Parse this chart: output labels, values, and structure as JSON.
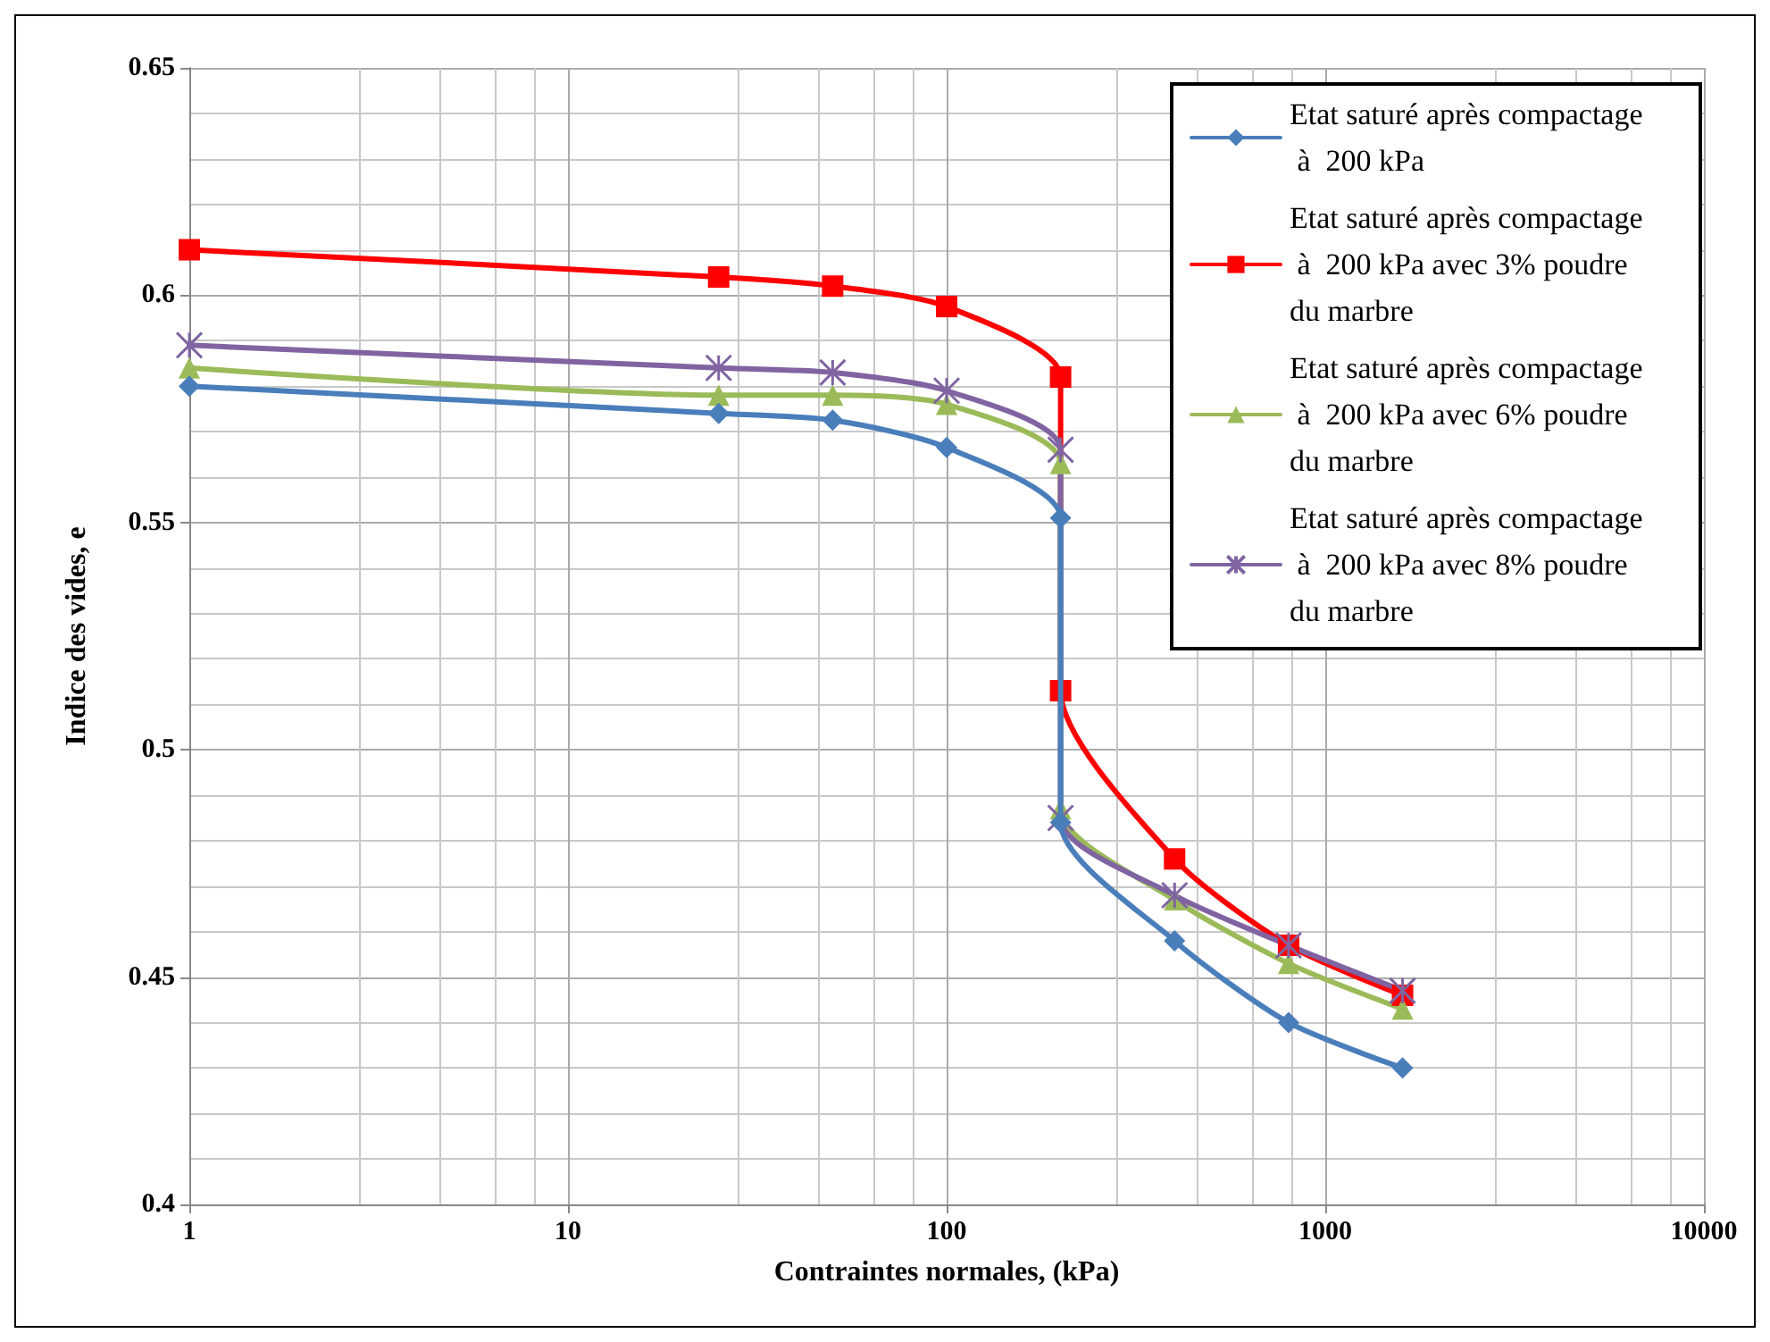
{
  "chart_data": {
    "type": "line",
    "xlabel": "Contraintes normales, (kPa)",
    "ylabel": "Indice des vides, e",
    "x": [
      1,
      25,
      50,
      100,
      200,
      200,
      400,
      800,
      1600
    ],
    "series": [
      {
        "name": "Etat saturé après compactage à  200 kPa",
        "color": "#4a7ebb",
        "marker": "diamond",
        "values": [
          0.58,
          0.574,
          0.5725,
          0.5665,
          0.551,
          0.484,
          0.458,
          0.44,
          0.43
        ]
      },
      {
        "name": "Etat saturé après compactage à  200 kPa avec 3% poudre du marbre",
        "color": "#ff0000",
        "marker": "square",
        "values": [
          0.61,
          0.604,
          0.602,
          0.5975,
          0.582,
          0.513,
          0.476,
          0.457,
          0.446
        ]
      },
      {
        "name": "Etat saturé après compactage à  200 kPa avec 6% poudre du marbre",
        "color": "#9bbb59",
        "marker": "triangle",
        "values": [
          0.584,
          0.578,
          0.578,
          0.576,
          0.563,
          0.487,
          0.467,
          0.453,
          0.443
        ]
      },
      {
        "name": "Etat saturé après compactage à  200 kPa avec 8% poudre du marbre",
        "color": "#8064a2",
        "marker": "cross",
        "values": [
          0.589,
          0.584,
          0.583,
          0.579,
          0.566,
          0.485,
          0.468,
          0.457,
          0.447
        ]
      }
    ],
    "log": "x",
    "xlim": [
      1,
      10000
    ],
    "xticks": [
      1,
      10,
      100,
      1000,
      10000
    ],
    "ylim": [
      0.4,
      0.65
    ],
    "yticks": [
      0.4,
      0.45,
      0.5,
      0.55,
      0.6,
      0.65
    ],
    "grid": true,
    "legend": "top right"
  }
}
